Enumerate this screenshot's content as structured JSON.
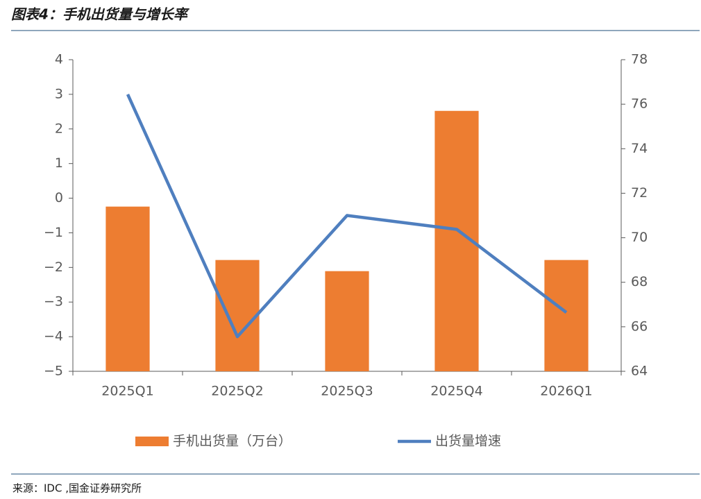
{
  "chart_data": {
    "type": "bar",
    "title": "图表4：手机出货量与增长率",
    "source": "来源：IDC ,国金证券研究所",
    "categories": [
      "2025Q1",
      "2025Q2",
      "2025Q3",
      "2025Q4",
      "2026Q1"
    ],
    "series": [
      {
        "name": "手机出货量（万台）",
        "type": "bar",
        "axis": "y2",
        "color": "#ED7D31",
        "values": [
          71.4,
          69.0,
          68.5,
          75.7,
          69.0
        ]
      },
      {
        "name": "出货量增速",
        "type": "line",
        "color": "#4F7FBF",
        "values": [
          3.0,
          -4.0,
          -0.5,
          -0.9,
          -3.3
        ]
      }
    ],
    "ylim": [
      -5,
      4
    ],
    "yticks": [
      {
        "value": -5,
        "label": "−5"
      },
      {
        "value": -4,
        "label": "−4"
      },
      {
        "value": -3,
        "label": "−3"
      },
      {
        "value": -2,
        "label": "−2"
      },
      {
        "value": -1,
        "label": "−1"
      },
      0,
      1,
      2,
      3,
      4
    ],
    "y2lim": [
      64,
      78
    ],
    "y2ticks": [
      64,
      66,
      68,
      70,
      72,
      74,
      76,
      78
    ],
    "legend": "bottom"
  }
}
